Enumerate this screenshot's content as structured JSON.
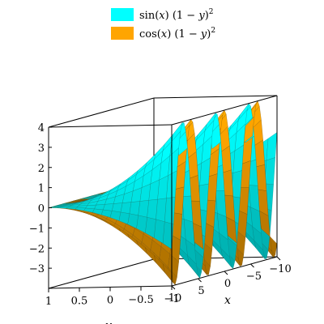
{
  "chart_data": {
    "type": "surface3d",
    "title": "",
    "series": [
      {
        "name": "sin(x) (1 − y)^2",
        "function": "sin(x)*(1-y)^2",
        "color": "#00ffff"
      },
      {
        "name": "cos(x) (1 − y)^2",
        "function": "cos(x)*(1-y)^2",
        "color": "#ffa500"
      }
    ],
    "x_range": [
      -10,
      10
    ],
    "y_range": [
      -1,
      1
    ],
    "z_range": [
      -4,
      4
    ],
    "xlabel": "x",
    "ylabel": "y",
    "zlabel": "",
    "x_ticks": [
      "10",
      "5",
      "0",
      "−5",
      "−10"
    ],
    "y_ticks": [
      "−1",
      "−0.5",
      "0",
      "0.5",
      "1"
    ],
    "z_ticks": [
      "4",
      "3",
      "2",
      "1",
      "0",
      "−1",
      "−2",
      "−3"
    ],
    "box": true,
    "legend_position": "top"
  }
}
